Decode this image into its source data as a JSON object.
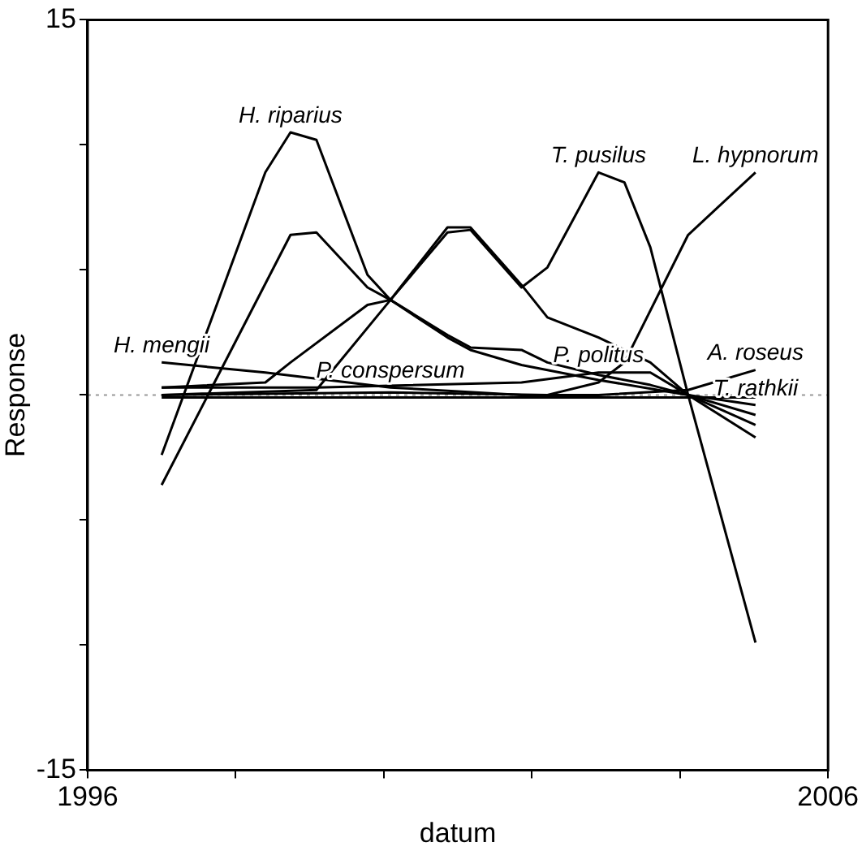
{
  "chart_data": {
    "type": "line",
    "xlabel": "datum",
    "ylabel": "Response",
    "xlim": [
      1996,
      2006
    ],
    "xticks": [
      1996,
      {
        "value": 1998,
        "label": null
      },
      {
        "value": 2000,
        "label": null
      },
      {
        "value": 2002,
        "label": null
      },
      {
        "value": 2004,
        "label": null
      },
      2006
    ],
    "ylim": [
      -15,
      15
    ],
    "yticks": [
      -15,
      {
        "value": -10,
        "label": null
      },
      {
        "value": -5,
        "label": null
      },
      {
        "value": 0,
        "label": null
      },
      {
        "value": 5,
        "label": null
      },
      {
        "value": 10,
        "label": null
      },
      15
    ],
    "grid": false,
    "legend": false,
    "marker": "none",
    "line_style": "solid",
    "series": [
      {
        "color": "#000000",
        "x": [
          1997.0,
          1998.4,
          1998.74,
          1999.09,
          1999.78,
          2000.09,
          2000.86,
          2001.17,
          2001.86,
          2002.21,
          2002.9,
          2003.6,
          2004.11,
          2005.02
        ],
        "values": [
          -2.4,
          8.9,
          10.5,
          10.2,
          4.8,
          3.8,
          2.4,
          1.9,
          1.8,
          1.3,
          0.8,
          0.4,
          0.0,
          -0.8
        ]
      },
      {
        "color": "#000000",
        "x": [
          1997.0,
          1998.74,
          1999.09,
          1999.78,
          2000.09,
          2000.86,
          2001.17,
          2001.86,
          2002.9,
          2004.11,
          2005.02
        ],
        "values": [
          -3.6,
          6.4,
          6.5,
          4.3,
          3.8,
          2.3,
          1.8,
          1.2,
          0.6,
          0.0,
          -1.2
        ]
      },
      {
        "color": "#000000",
        "x": [
          1997.0,
          1998.4,
          1998.74,
          1999.78,
          2000.09,
          2000.86,
          2001.17,
          2001.86,
          2002.21,
          2002.9,
          2003.6,
          2004.11,
          2005.02
        ],
        "values": [
          0.3,
          0.5,
          1.3,
          3.6,
          3.8,
          6.7,
          6.7,
          4.4,
          3.1,
          2.3,
          1.3,
          0.0,
          -1.7
        ]
      },
      {
        "color": "#000000",
        "x": [
          1997.0,
          1999.09,
          2000.09,
          2000.86,
          2001.17,
          2001.86,
          2002.21,
          2002.9,
          2003.25,
          2003.6,
          2004.11,
          2005.02
        ],
        "values": [
          0.0,
          0.2,
          3.8,
          6.5,
          6.6,
          4.3,
          5.1,
          8.9,
          8.5,
          5.9,
          0.0,
          -9.9
        ]
      },
      {
        "color": "#000000",
        "x": [
          1997.0,
          2000.09,
          2002.21,
          2002.9,
          2003.25,
          2004.11,
          2005.02
        ],
        "values": [
          0.0,
          0.1,
          0.0,
          0.5,
          1.3,
          6.4,
          8.9
        ]
      },
      {
        "color": "#000000",
        "x": [
          1997.0,
          1998.4,
          2000.09,
          2001.86,
          2002.9,
          2004.11,
          2005.02
        ],
        "values": [
          1.3,
          0.9,
          0.3,
          0.0,
          0.0,
          0.2,
          1.0
        ]
      },
      {
        "color": "#000000",
        "x": [
          1997.0,
          1999.09,
          2001.86,
          2002.9,
          2003.6,
          2004.11,
          2005.02
        ],
        "values": [
          0.3,
          0.3,
          0.5,
          0.9,
          0.9,
          0.0,
          -0.4
        ]
      },
      {
        "color": "#000000",
        "x": [
          1997.0,
          2005.02
        ],
        "values": [
          -0.1,
          -0.1
        ]
      }
    ],
    "ref_lines": [
      {
        "axis": "y",
        "value": 0,
        "color": "#999999",
        "line_style": "dotted"
      }
    ],
    "annotations": [
      {
        "text": "H. riparius",
        "x": 1998.74,
        "y": 10.5
      },
      {
        "text": "T. pusilus",
        "x": 2002.9,
        "y": 8.9
      },
      {
        "text": "L. hypnorum",
        "x": 2005.02,
        "y": 8.9
      },
      {
        "text": "H. mengii",
        "x": 1997.0,
        "y": 1.3
      },
      {
        "text": "P. conspersum",
        "x": 2000.09,
        "y": 0.3
      },
      {
        "text": "P. politus",
        "x": 2002.9,
        "y": 0.9
      },
      {
        "text": "A. roseus",
        "x": 2005.02,
        "y": 1.0
      },
      {
        "text": "T. rathkii",
        "x": 2005.02,
        "y": -0.4
      }
    ]
  }
}
